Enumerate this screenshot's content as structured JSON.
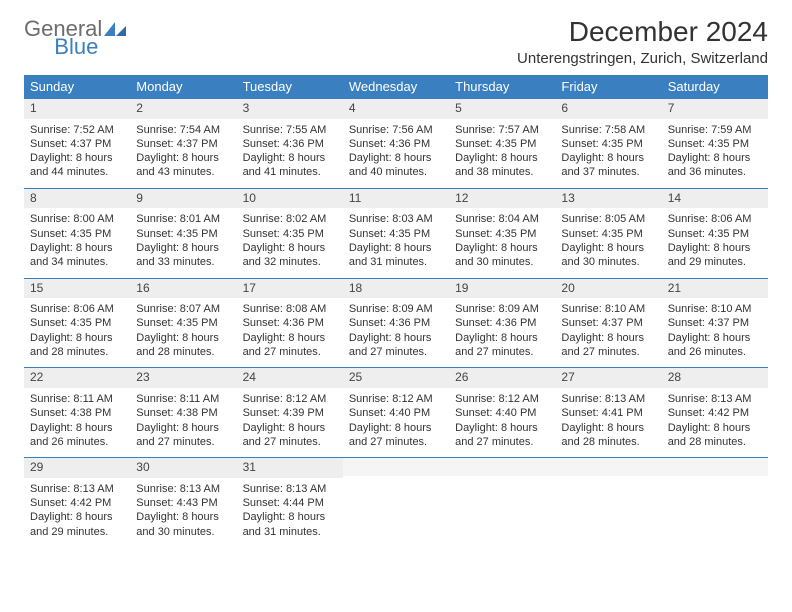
{
  "logo": {
    "part1": "General",
    "part2": "Blue"
  },
  "title": "December 2024",
  "location": "Unterengstringen, Zurich, Switzerland",
  "colors": {
    "header_bg": "#3a7fc0",
    "header_text": "#ffffff",
    "daynum_bg": "#eeeeee",
    "body_text": "#333333",
    "logo_gray": "#6d6d6d",
    "logo_blue": "#3a7fc0",
    "rule": "#3a7fc0"
  },
  "weekdays": [
    "Sunday",
    "Monday",
    "Tuesday",
    "Wednesday",
    "Thursday",
    "Friday",
    "Saturday"
  ],
  "weeks": [
    [
      {
        "n": "1",
        "sr": "7:52 AM",
        "ss": "4:37 PM",
        "dl": "8 hours and 44 minutes."
      },
      {
        "n": "2",
        "sr": "7:54 AM",
        "ss": "4:37 PM",
        "dl": "8 hours and 43 minutes."
      },
      {
        "n": "3",
        "sr": "7:55 AM",
        "ss": "4:36 PM",
        "dl": "8 hours and 41 minutes."
      },
      {
        "n": "4",
        "sr": "7:56 AM",
        "ss": "4:36 PM",
        "dl": "8 hours and 40 minutes."
      },
      {
        "n": "5",
        "sr": "7:57 AM",
        "ss": "4:35 PM",
        "dl": "8 hours and 38 minutes."
      },
      {
        "n": "6",
        "sr": "7:58 AM",
        "ss": "4:35 PM",
        "dl": "8 hours and 37 minutes."
      },
      {
        "n": "7",
        "sr": "7:59 AM",
        "ss": "4:35 PM",
        "dl": "8 hours and 36 minutes."
      }
    ],
    [
      {
        "n": "8",
        "sr": "8:00 AM",
        "ss": "4:35 PM",
        "dl": "8 hours and 34 minutes."
      },
      {
        "n": "9",
        "sr": "8:01 AM",
        "ss": "4:35 PM",
        "dl": "8 hours and 33 minutes."
      },
      {
        "n": "10",
        "sr": "8:02 AM",
        "ss": "4:35 PM",
        "dl": "8 hours and 32 minutes."
      },
      {
        "n": "11",
        "sr": "8:03 AM",
        "ss": "4:35 PM",
        "dl": "8 hours and 31 minutes."
      },
      {
        "n": "12",
        "sr": "8:04 AM",
        "ss": "4:35 PM",
        "dl": "8 hours and 30 minutes."
      },
      {
        "n": "13",
        "sr": "8:05 AM",
        "ss": "4:35 PM",
        "dl": "8 hours and 30 minutes."
      },
      {
        "n": "14",
        "sr": "8:06 AM",
        "ss": "4:35 PM",
        "dl": "8 hours and 29 minutes."
      }
    ],
    [
      {
        "n": "15",
        "sr": "8:06 AM",
        "ss": "4:35 PM",
        "dl": "8 hours and 28 minutes."
      },
      {
        "n": "16",
        "sr": "8:07 AM",
        "ss": "4:35 PM",
        "dl": "8 hours and 28 minutes."
      },
      {
        "n": "17",
        "sr": "8:08 AM",
        "ss": "4:36 PM",
        "dl": "8 hours and 27 minutes."
      },
      {
        "n": "18",
        "sr": "8:09 AM",
        "ss": "4:36 PM",
        "dl": "8 hours and 27 minutes."
      },
      {
        "n": "19",
        "sr": "8:09 AM",
        "ss": "4:36 PM",
        "dl": "8 hours and 27 minutes."
      },
      {
        "n": "20",
        "sr": "8:10 AM",
        "ss": "4:37 PM",
        "dl": "8 hours and 27 minutes."
      },
      {
        "n": "21",
        "sr": "8:10 AM",
        "ss": "4:37 PM",
        "dl": "8 hours and 26 minutes."
      }
    ],
    [
      {
        "n": "22",
        "sr": "8:11 AM",
        "ss": "4:38 PM",
        "dl": "8 hours and 26 minutes."
      },
      {
        "n": "23",
        "sr": "8:11 AM",
        "ss": "4:38 PM",
        "dl": "8 hours and 27 minutes."
      },
      {
        "n": "24",
        "sr": "8:12 AM",
        "ss": "4:39 PM",
        "dl": "8 hours and 27 minutes."
      },
      {
        "n": "25",
        "sr": "8:12 AM",
        "ss": "4:40 PM",
        "dl": "8 hours and 27 minutes."
      },
      {
        "n": "26",
        "sr": "8:12 AM",
        "ss": "4:40 PM",
        "dl": "8 hours and 27 minutes."
      },
      {
        "n": "27",
        "sr": "8:13 AM",
        "ss": "4:41 PM",
        "dl": "8 hours and 28 minutes."
      },
      {
        "n": "28",
        "sr": "8:13 AM",
        "ss": "4:42 PM",
        "dl": "8 hours and 28 minutes."
      }
    ],
    [
      {
        "n": "29",
        "sr": "8:13 AM",
        "ss": "4:42 PM",
        "dl": "8 hours and 29 minutes."
      },
      {
        "n": "30",
        "sr": "8:13 AM",
        "ss": "4:43 PM",
        "dl": "8 hours and 30 minutes."
      },
      {
        "n": "31",
        "sr": "8:13 AM",
        "ss": "4:44 PM",
        "dl": "8 hours and 31 minutes."
      },
      null,
      null,
      null,
      null
    ]
  ],
  "labels": {
    "sunrise": "Sunrise:",
    "sunset": "Sunset:",
    "daylight": "Daylight:"
  }
}
